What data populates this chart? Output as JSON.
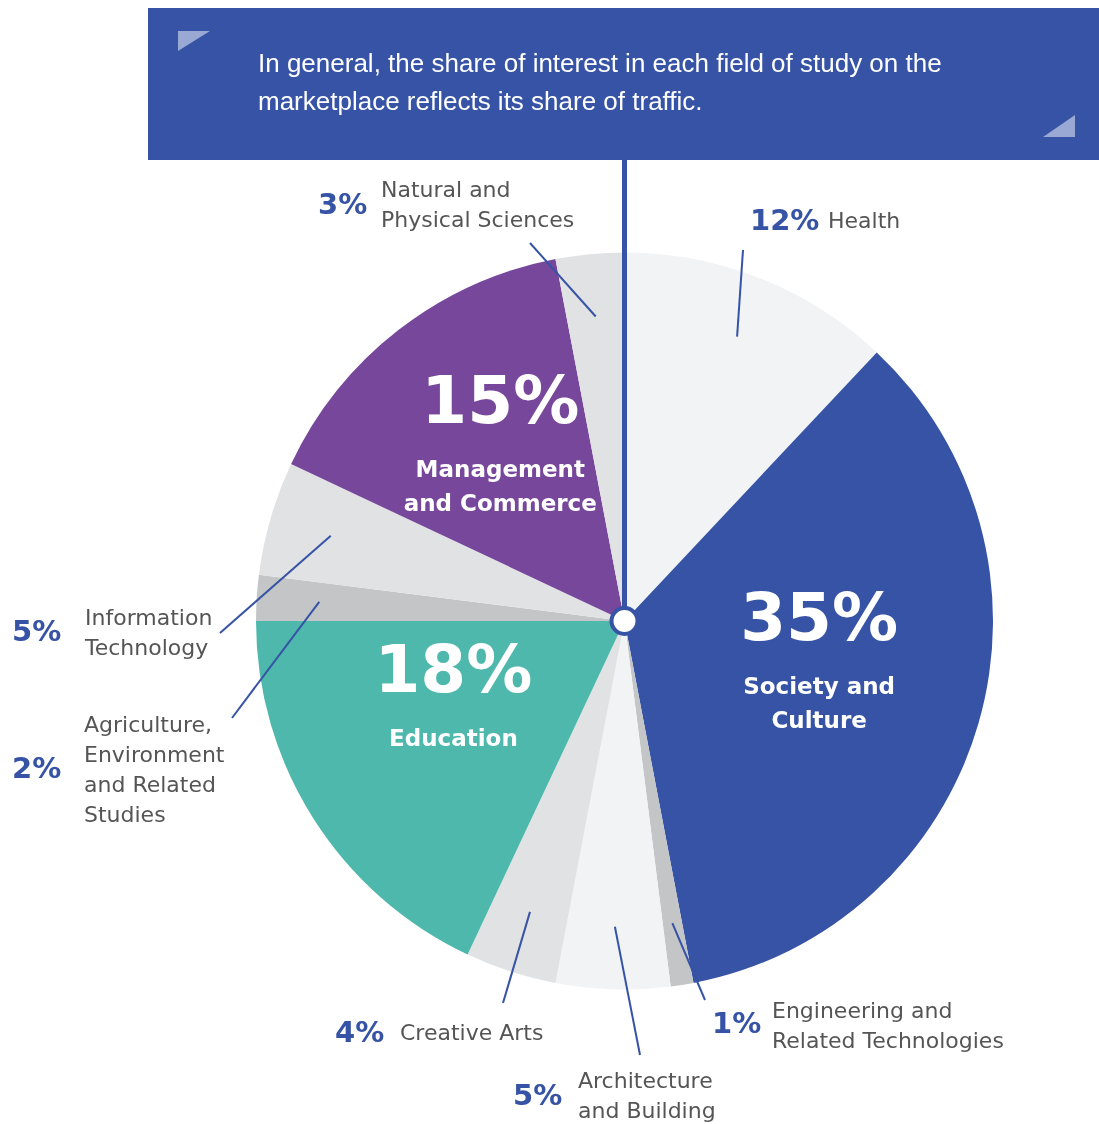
{
  "chart_data": {
    "type": "pie",
    "title": "In general, the share of interest in each field of study on the marketplace reflects its share of traffic.",
    "categories": [
      "Health",
      "Society and Culture",
      "Engineering and Related Technologies",
      "Architecture and Building",
      "Creative Arts",
      "Education",
      "Agriculture, Environment and Related Studies",
      "Information Technology",
      "Management and Commerce",
      "Natural and Physical Sciences"
    ],
    "values": [
      12,
      35,
      1,
      5,
      4,
      18,
      2,
      5,
      15,
      3
    ],
    "colors": [
      "#f2f3f5",
      "#3653a5",
      "#c4c5c7",
      "#f2f3f5",
      "#e1e2e4",
      "#4db8ab",
      "#c4c5c7",
      "#e1e2e4",
      "#77479b",
      "#e1e2e4"
    ],
    "value_labels": [
      "12%",
      "35%",
      "1%",
      "5%",
      "4%",
      "18%",
      "2%",
      "5%",
      "15%",
      "3%"
    ],
    "legend": false
  }
}
